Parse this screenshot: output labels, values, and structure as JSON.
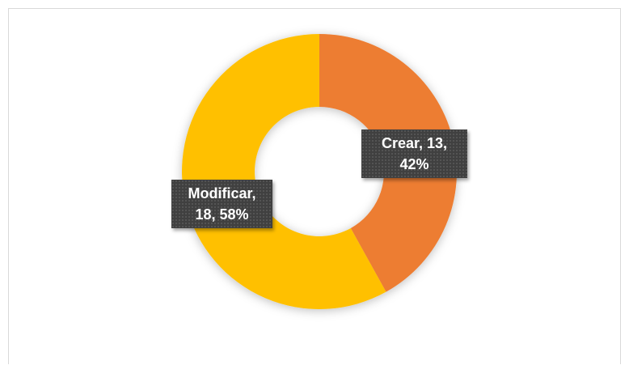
{
  "chart_data": {
    "type": "donut",
    "categories": [
      "Crear",
      "Modificar"
    ],
    "values": [
      13,
      18
    ],
    "value_labels": [
      "Crear, 13, 42%",
      "Modificar, 18, 58%"
    ],
    "colors": [
      "#ED7D31",
      "#FFC000"
    ]
  }
}
